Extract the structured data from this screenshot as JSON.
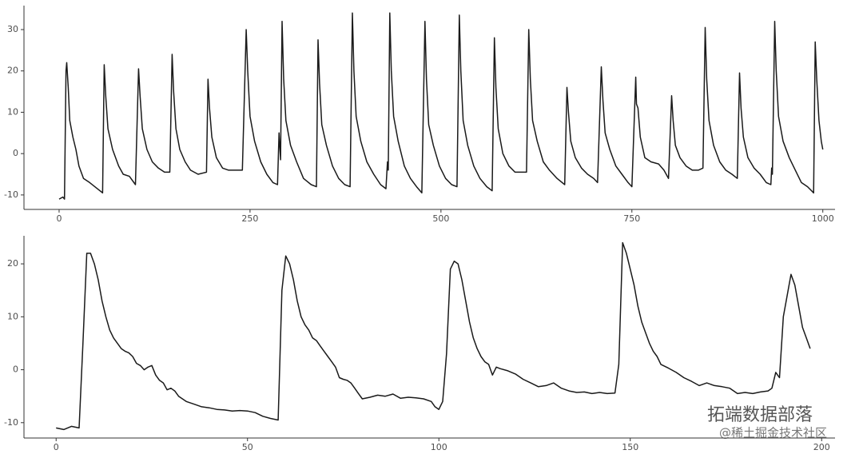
{
  "chart_data": [
    {
      "type": "line",
      "color": "#1a1a1a",
      "xlim": [
        -46,
        1016
      ],
      "ylim": [
        -13.5,
        35.8
      ],
      "xticks": [
        0,
        250,
        500,
        750,
        1000
      ],
      "yticks": [
        -10,
        0,
        10,
        20,
        30
      ],
      "x": [
        0,
        5,
        7,
        9,
        10,
        12,
        14,
        18,
        22,
        26,
        32,
        40,
        50,
        57,
        59,
        61,
        64,
        70,
        78,
        84,
        92,
        100,
        104,
        106,
        109,
        115,
        122,
        130,
        138,
        145,
        148,
        150,
        153,
        158,
        165,
        172,
        182,
        193,
        195,
        197,
        200,
        206,
        214,
        222,
        232,
        240,
        245,
        247,
        250,
        256,
        264,
        272,
        280,
        286,
        288,
        290,
        292,
        294,
        297,
        303,
        311,
        320,
        330,
        337,
        339,
        341,
        344,
        350,
        358,
        366,
        374,
        381,
        384,
        386,
        389,
        395,
        403,
        412,
        421,
        428,
        430,
        431,
        433,
        435,
        438,
        444,
        452,
        460,
        468,
        475,
        479,
        481,
        484,
        490,
        498,
        506,
        514,
        521,
        524,
        526,
        529,
        535,
        543,
        551,
        560,
        567,
        570,
        572,
        575,
        581,
        589,
        597,
        605,
        612,
        615,
        617,
        620,
        626,
        634,
        642,
        652,
        662,
        665,
        667,
        670,
        676,
        684,
        692,
        700,
        705,
        710,
        712,
        715,
        721,
        729,
        737,
        745,
        750,
        755,
        756,
        758,
        761,
        767,
        775,
        785,
        792,
        798,
        802,
        804,
        807,
        813,
        821,
        829,
        837,
        843,
        846,
        848,
        851,
        857,
        865,
        873,
        881,
        888,
        891,
        893,
        896,
        902,
        910,
        918,
        926,
        932,
        933,
        934,
        937,
        939,
        942,
        948,
        956,
        964,
        972,
        980,
        988,
        990,
        992,
        995,
        998,
        1000
      ],
      "values": [
        -11,
        -10.5,
        -11,
        20,
        22,
        16,
        8,
        4,
        1,
        -3,
        -6,
        -7,
        -8.5,
        -9.5,
        21.5,
        14,
        6,
        1,
        -3,
        -5,
        -5.5,
        -7.5,
        20.5,
        14,
        6,
        1,
        -2,
        -3.5,
        -4.5,
        -4.5,
        24,
        15,
        6,
        1,
        -2,
        -4,
        -5,
        -4.5,
        18,
        11,
        4,
        -1,
        -3.5,
        -4,
        -4,
        -4,
        30,
        20,
        9,
        3,
        -2,
        -5,
        -7,
        -7.5,
        5,
        -1.5,
        32,
        18,
        8,
        2,
        -2,
        -6,
        -7.5,
        -8,
        27.5,
        17,
        7,
        2,
        -3,
        -6,
        -7.5,
        -8,
        34,
        20,
        9,
        3,
        -2,
        -5,
        -7.5,
        -8.5,
        -2,
        -4,
        34,
        20,
        9,
        3,
        -3,
        -6,
        -8,
        -9.5,
        32,
        18,
        7,
        2,
        -3,
        -6,
        -7.5,
        -8,
        33.5,
        20,
        8,
        2,
        -3,
        -6,
        -8,
        -9,
        28,
        16,
        6,
        0,
        -3,
        -4.5,
        -4.5,
        -4.5,
        30,
        18,
        8,
        3,
        -2,
        -4,
        -6,
        -7.5,
        16,
        10,
        3,
        -1,
        -3.5,
        -5,
        -6,
        -7,
        21,
        13,
        5,
        1,
        -3,
        -5,
        -7,
        -8,
        18.5,
        12,
        11,
        4,
        -1,
        -2,
        -2.5,
        -4,
        -6,
        14,
        8,
        2,
        -1,
        -3,
        -4,
        -4,
        -3.5,
        30.5,
        18,
        8,
        2,
        -2,
        -4,
        -5,
        -6,
        19.5,
        11,
        4,
        -1,
        -3.5,
        -5,
        -7,
        -7.5,
        -3.5,
        -5,
        32,
        20,
        9,
        3,
        -1,
        -4,
        -7,
        -8,
        -9.5,
        27,
        18,
        8,
        3,
        1
      ]
    },
    {
      "type": "line",
      "color": "#1a1a1a",
      "xlim": [
        -8.4,
        203.5
      ],
      "ylim": [
        -12.9,
        25.3
      ],
      "xticks": [
        0,
        50,
        100,
        150,
        200
      ],
      "yticks": [
        -10,
        0,
        10,
        20
      ],
      "x": [
        0,
        2,
        4,
        6,
        7,
        8,
        9,
        10,
        11,
        12,
        13,
        14,
        15,
        16,
        17,
        18,
        19,
        20,
        21,
        22,
        23,
        24,
        25,
        26,
        27,
        28,
        29,
        30,
        31,
        32,
        34,
        36,
        38,
        40,
        42,
        44,
        46,
        48,
        50,
        52,
        54,
        56,
        58,
        59,
        60,
        61,
        62,
        63,
        64,
        65,
        66,
        67,
        68,
        69,
        70,
        71,
        72,
        73,
        74,
        75,
        76,
        77,
        78,
        79,
        80,
        82,
        84,
        86,
        88,
        90,
        92,
        94,
        96,
        98,
        99,
        100,
        101,
        102,
        103,
        104,
        105,
        106,
        107,
        108,
        109,
        110,
        111,
        112,
        113,
        114,
        115,
        116,
        118,
        120,
        122,
        124,
        126,
        128,
        130,
        132,
        134,
        136,
        138,
        140,
        142,
        144,
        146,
        147,
        148,
        149,
        150,
        151,
        152,
        153,
        154,
        155,
        156,
        157,
        158,
        160,
        162,
        164,
        166,
        168,
        170,
        172,
        174,
        176,
        178,
        180,
        182,
        184,
        186,
        187,
        188,
        189,
        190,
        191,
        192,
        193,
        194,
        195,
        196,
        197
      ],
      "values": [
        -11,
        -11.3,
        -10.7,
        -11,
        5,
        22,
        22,
        20,
        17,
        13,
        10,
        7.5,
        6,
        5,
        4,
        3.5,
        3.2,
        2.5,
        1.2,
        0.8,
        0,
        0.5,
        0.8,
        -1,
        -2,
        -2.5,
        -3.8,
        -3.5,
        -4,
        -5,
        -6,
        -6.5,
        -7,
        -7.2,
        -7.5,
        -7.6,
        -7.8,
        -7.7,
        -7.8,
        -8.1,
        -8.8,
        -9.2,
        -9.5,
        15,
        21.5,
        20,
        17,
        13,
        10,
        8.5,
        7.5,
        6,
        5.5,
        4.5,
        3.5,
        2.5,
        1.5,
        0.5,
        -1.5,
        -1.8,
        -2,
        -2.5,
        -3.5,
        -4.5,
        -5.5,
        -5.2,
        -4.8,
        -5,
        -4.6,
        -5.4,
        -5.2,
        -5.3,
        -5.5,
        -6,
        -7,
        -7.5,
        -6,
        3,
        19,
        20.5,
        20,
        17,
        13,
        9,
        6,
        4,
        2.5,
        1.5,
        1,
        -1,
        0.5,
        0.2,
        -0.2,
        -0.8,
        -1.8,
        -2.5,
        -3.2,
        -3,
        -2.5,
        -3.5,
        -4,
        -4.3,
        -4.2,
        -4.5,
        -4.3,
        -4.5,
        -4.4,
        1,
        24,
        22,
        19,
        16,
        12,
        9,
        7,
        5,
        3.5,
        2.5,
        1,
        0.3,
        -0.5,
        -1.5,
        -2.2,
        -3,
        -2.5,
        -3,
        -3.2,
        -3.5,
        -4.5,
        -4.3,
        -4.5,
        -4.2,
        -4,
        -3.5,
        -0.5,
        -1.5,
        10,
        14,
        18,
        16,
        12,
        8,
        6,
        4
      ]
    }
  ],
  "watermark": [
    "拓端数据部落",
    "@稀土掘金技术社区"
  ]
}
